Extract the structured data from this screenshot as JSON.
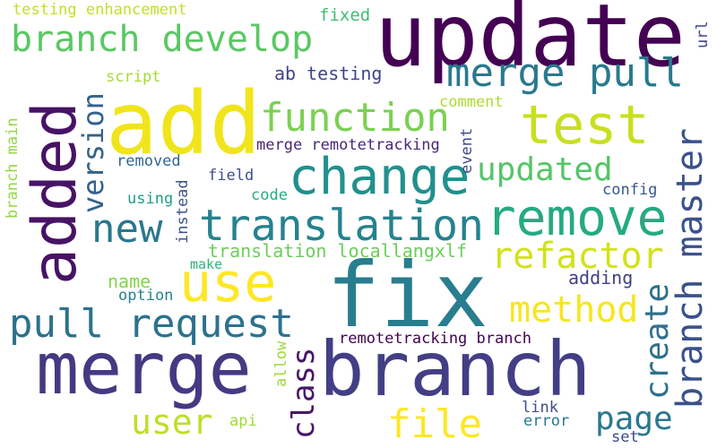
{
  "words": [
    {
      "id": "update",
      "text": "update",
      "color": "#440154"
    },
    {
      "id": "add",
      "text": "add",
      "color": "#f0e51c"
    },
    {
      "id": "added",
      "text": "added",
      "color": "#471365"
    },
    {
      "id": "fix",
      "text": "fix",
      "color": "#287d8e"
    },
    {
      "id": "merge",
      "text": "merge",
      "color": "#443a83"
    },
    {
      "id": "branch",
      "text": "branch",
      "color": "#433e85"
    },
    {
      "id": "change",
      "text": "change",
      "color": "#21908d"
    },
    {
      "id": "remove",
      "text": "remove",
      "color": "#25aa82"
    },
    {
      "id": "translation",
      "text": "translation",
      "color": "#26828e"
    },
    {
      "id": "branch-develop",
      "text": "branch develop",
      "color": "#5ac864"
    },
    {
      "id": "merge-pull",
      "text": "merge pull",
      "color": "#29798e"
    },
    {
      "id": "test",
      "text": "test",
      "color": "#c8e020"
    },
    {
      "id": "function",
      "text": "function",
      "color": "#7ad151"
    },
    {
      "id": "use",
      "text": "use",
      "color": "#fde725"
    },
    {
      "id": "pull-request",
      "text": "pull request",
      "color": "#2c728e"
    },
    {
      "id": "new",
      "text": "new",
      "color": "#2a788e"
    },
    {
      "id": "branch-master",
      "text": "branch master",
      "color": "#3b518b"
    },
    {
      "id": "refactor",
      "text": "refactor",
      "color": "#d2e21b"
    },
    {
      "id": "method",
      "text": "method",
      "color": "#f6e620"
    },
    {
      "id": "updated",
      "text": "updated",
      "color": "#54c568"
    },
    {
      "id": "version",
      "text": "version",
      "color": "#33628d"
    },
    {
      "id": "create",
      "text": "create",
      "color": "#2d708e"
    },
    {
      "id": "page",
      "text": "page",
      "color": "#2a788e"
    },
    {
      "id": "file",
      "text": "file",
      "color": "#fde725"
    },
    {
      "id": "user",
      "text": "user",
      "color": "#bddf26"
    },
    {
      "id": "class",
      "text": "class",
      "color": "#481769"
    },
    {
      "id": "testing-enhancement",
      "text": "testing enhancement",
      "color": "#c2df23"
    },
    {
      "id": "fixed",
      "text": "fixed",
      "color": "#3fbc73"
    },
    {
      "id": "ab-testing",
      "text": "ab testing",
      "color": "#414487"
    },
    {
      "id": "script",
      "text": "script",
      "color": "#a5db36"
    },
    {
      "id": "comment",
      "text": "comment",
      "color": "#addc30"
    },
    {
      "id": "url",
      "text": "url",
      "color": "#414487"
    },
    {
      "id": "merge-remotetracking",
      "text": "merge remotetracking",
      "color": "#482878"
    },
    {
      "id": "branch-main",
      "text": "branch main",
      "color": "#93d741"
    },
    {
      "id": "event",
      "text": "event",
      "color": "#3e4a89"
    },
    {
      "id": "removed",
      "text": "removed",
      "color": "#31688e"
    },
    {
      "id": "field",
      "text": "field",
      "color": "#3b528b"
    },
    {
      "id": "config",
      "text": "config",
      "color": "#38588c"
    },
    {
      "id": "using",
      "text": "using",
      "color": "#1f9e89"
    },
    {
      "id": "instead",
      "text": "instead",
      "color": "#3b528b"
    },
    {
      "id": "code",
      "text": "code",
      "color": "#26ad81"
    },
    {
      "id": "translation-locallangxlf",
      "text": "translation locallangxlf",
      "color": "#6ccd5a"
    },
    {
      "id": "make",
      "text": "make",
      "color": "#2fb47c"
    },
    {
      "id": "name",
      "text": "name",
      "color": "#84d44b"
    },
    {
      "id": "adding",
      "text": "adding",
      "color": "#424086"
    },
    {
      "id": "option",
      "text": "option",
      "color": "#25838e"
    },
    {
      "id": "remotetracking-branch",
      "text": "remotetracking branch",
      "color": "#440154"
    },
    {
      "id": "allow",
      "text": "allow",
      "color": "#9bd93c"
    },
    {
      "id": "link",
      "text": "link",
      "color": "#3e4c8a"
    },
    {
      "id": "api",
      "text": "api",
      "color": "#a2da37"
    },
    {
      "id": "error",
      "text": "error",
      "color": "#2a788e"
    },
    {
      "id": "set",
      "text": "set",
      "color": "#3e4a89"
    }
  ]
}
